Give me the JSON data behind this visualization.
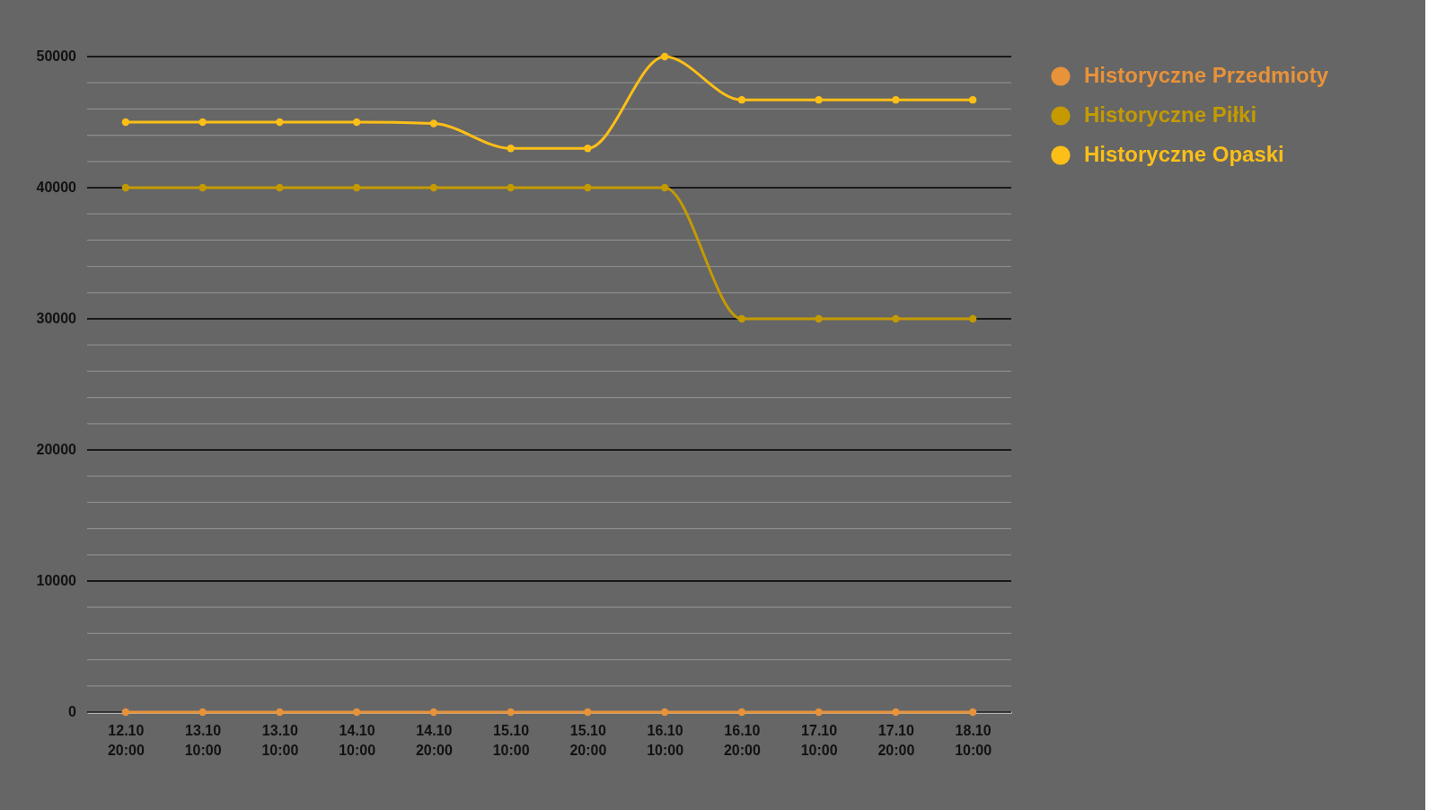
{
  "chart_data": {
    "type": "line",
    "categories": [
      "12.10 20:00",
      "13.10 10:00",
      "13.10 10:00",
      "14.10 10:00",
      "14.10 20:00",
      "15.10 10:00",
      "15.10 20:00",
      "16.10 10:00",
      "16.10 20:00",
      "17.10 10:00",
      "17.10 20:00",
      "18.10 10:00"
    ],
    "series": [
      {
        "name": "Historyczne Przedmioty",
        "color": "#e8923a",
        "values": [
          0,
          0,
          0,
          0,
          0,
          0,
          0,
          0,
          0,
          0,
          0,
          0
        ]
      },
      {
        "name": "Historyczne Piłki",
        "color": "#c49a00",
        "values": [
          40000,
          40000,
          40000,
          40000,
          40000,
          40000,
          40000,
          40000,
          30000,
          30000,
          30000,
          30000
        ]
      },
      {
        "name": "Historyczne Opaski",
        "color": "#fcbf17",
        "values": [
          45000,
          45000,
          45000,
          45000,
          44900,
          43000,
          43000,
          50000,
          46700,
          46700,
          46700,
          46700
        ]
      }
    ],
    "ylim": [
      0,
      50000
    ],
    "yticks": [
      0,
      {
        "value": 2000,
        "label": null
      },
      {
        "value": 4000,
        "label": null
      },
      {
        "value": 6000,
        "label": null
      },
      {
        "value": 8000,
        "label": null
      },
      10000,
      {
        "value": 12000,
        "label": null
      },
      {
        "value": 14000,
        "label": null
      },
      {
        "value": 16000,
        "label": null
      },
      {
        "value": 18000,
        "label": null
      },
      20000,
      {
        "value": 22000,
        "label": null
      },
      {
        "value": 24000,
        "label": null
      },
      {
        "value": 26000,
        "label": null
      },
      {
        "value": 28000,
        "label": null
      },
      30000,
      {
        "value": 32000,
        "label": null
      },
      {
        "value": 34000,
        "label": null
      },
      {
        "value": 36000,
        "label": null
      },
      {
        "value": 38000,
        "label": null
      },
      40000,
      {
        "value": 42000,
        "label": null
      },
      {
        "value": 44000,
        "label": null
      },
      {
        "value": 46000,
        "label": null
      },
      {
        "value": 48000,
        "label": null
      },
      50000
    ],
    "grid": true,
    "legend": "top right",
    "marker": "circle",
    "line_style": "solid"
  }
}
